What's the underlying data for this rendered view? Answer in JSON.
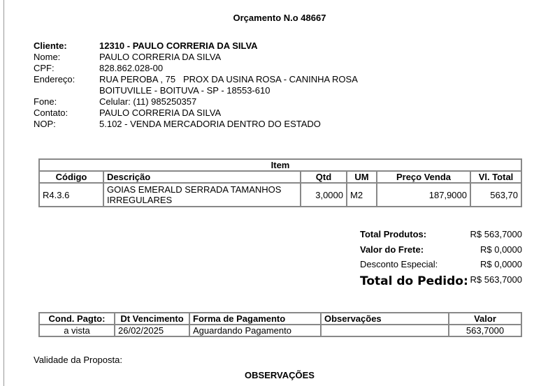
{
  "title": "Orçamento N.o 48667",
  "client": [
    {
      "label": "Cliente:",
      "value": "12310 - PAULO CORRERIA DA SILVA"
    },
    {
      "label": "Nome:",
      "value": "PAULO CORRERIA DA SILVA"
    },
    {
      "label": "CPF:",
      "value": "828.862.028-00"
    },
    {
      "label": "Endereço:",
      "value": "RUA PEROBA , 75   PROX DA USINA ROSA - CANINHA ROSA"
    },
    {
      "label": "",
      "value": "BOITUVILLE - BOITUVA - SP - 18553-610"
    },
    {
      "label": "Fone:",
      "value": "Celular: (11) 985250357"
    },
    {
      "label": "Contato:",
      "value": "PAULO CORRERIA DA SILVA"
    },
    {
      "label": "NOP:",
      "value": "5.102 - VENDA MERCADORIA DENTRO DO ESTADO"
    }
  ],
  "items": {
    "caption": "Item",
    "headers": [
      "Código",
      "Descrição",
      "Qtd",
      "UM",
      "Preço Venda",
      "Vl. Total"
    ],
    "rows": [
      [
        "R4.3.6",
        "GOIAS EMERALD SERRADA TAMANHOS IRREGULARES",
        "3,0000",
        "M2",
        "187,9000",
        "563,70"
      ]
    ]
  },
  "totals": {
    "total_produtos_label": "Total Produtos:",
    "total_produtos": "R$ 563,7000",
    "frete_label": "Valor do Frete:",
    "frete": "R$ 0,0000",
    "desconto_label": "Desconto Especial:",
    "desconto": "R$ 0,0000",
    "total_pedido_label": "Total do Pedido:",
    "total_pedido": "R$ 563,7000"
  },
  "payment": {
    "headers": [
      "Cond. Pagto:",
      "Dt Vencimento",
      "Forma de Pagamento",
      "Observações",
      "Valor"
    ],
    "rows": [
      [
        "a vista",
        "26/02/2025",
        "Aguardando Pagamento",
        "",
        "563,7000"
      ]
    ]
  },
  "validade_label": "Validade da Proposta:",
  "observacoes_title": "OBSERVAÇÕES"
}
